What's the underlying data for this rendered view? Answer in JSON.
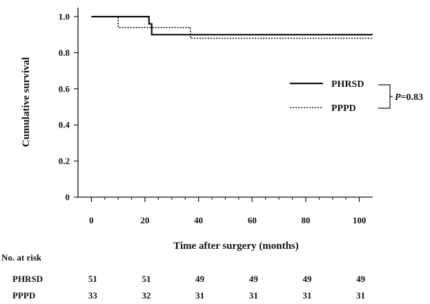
{
  "chart_data": {
    "type": "line",
    "subtype": "kaplan-meier-step",
    "xlabel": "Time after surgery (months)",
    "ylabel": "Cumulative survival",
    "xlim": [
      -5,
      105
    ],
    "ylim": [
      0,
      1.05
    ],
    "x_ticks": [
      "0",
      "20",
      "40",
      "60",
      "80",
      "100"
    ],
    "x_tick_values": [
      0,
      20,
      40,
      60,
      80,
      100
    ],
    "y_ticks": [
      "0",
      "0.2",
      "0.4",
      "0.6",
      "0.8",
      "1.0"
    ],
    "y_tick_values": [
      0,
      0.2,
      0.4,
      0.6,
      0.8,
      1.0
    ],
    "grid": false,
    "legend_position": "right",
    "series": [
      {
        "name": "PHRSD",
        "style": "solid",
        "color": "#111111",
        "points": [
          [
            0,
            1.0
          ],
          [
            21.5,
            1.0
          ],
          [
            21.5,
            0.96
          ],
          [
            22.5,
            0.96
          ],
          [
            22.5,
            0.9
          ],
          [
            105,
            0.9
          ]
        ]
      },
      {
        "name": "PPPD",
        "style": "dotted",
        "color": "#111111",
        "points": [
          [
            0,
            1.0
          ],
          [
            10,
            1.0
          ],
          [
            10,
            0.94
          ],
          [
            37,
            0.94
          ],
          [
            37,
            0.88
          ],
          [
            105,
            0.88
          ]
        ]
      }
    ],
    "annotation": {
      "prefix": "P",
      "text": "=0.83"
    },
    "risk_table": {
      "title": "No. at risk",
      "rows": [
        {
          "label": "PHRSD",
          "values": [
            "51",
            "51",
            "49",
            "49",
            "49",
            "49"
          ]
        },
        {
          "label": "PPPD",
          "values": [
            "33",
            "32",
            "31",
            "31",
            "31",
            "31"
          ]
        }
      ]
    }
  }
}
